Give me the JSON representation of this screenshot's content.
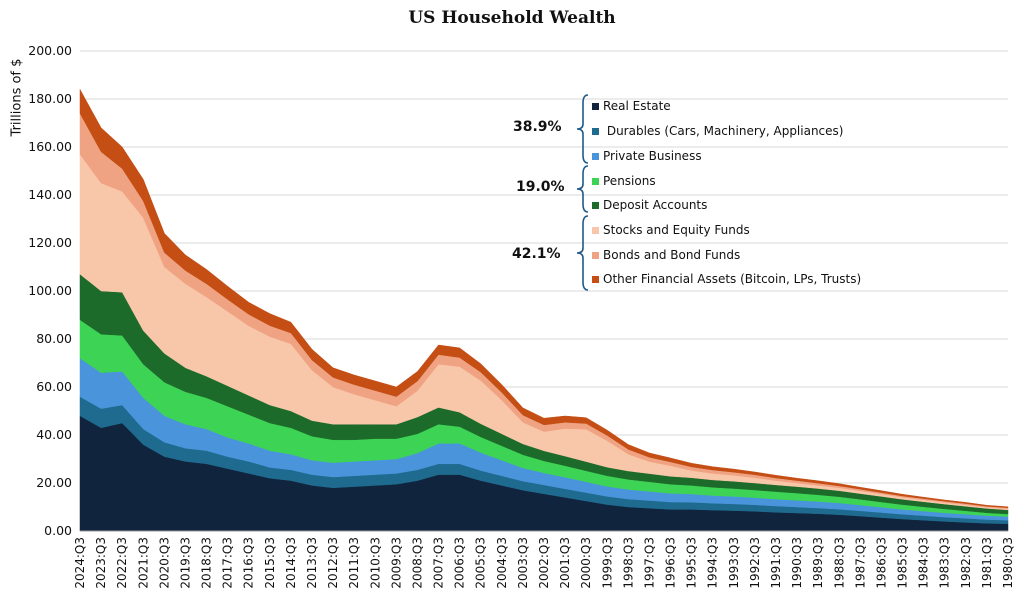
{
  "chart_data": {
    "type": "area",
    "title": "US Household Wealth",
    "xlabel": "",
    "ylabel": "Trillions of $",
    "ylim": [
      0,
      200
    ],
    "y_ticks": [
      "0.00",
      "20.00",
      "40.00",
      "60.00",
      "80.00",
      "100.00",
      "120.00",
      "140.00",
      "160.00",
      "180.00",
      "200.00"
    ],
    "x_tick_labels": [
      "2024:Q3",
      "2023:Q3",
      "2022:Q3",
      "2021:Q3",
      "2020:Q3",
      "2019:Q3",
      "2018:Q3",
      "2017:Q3",
      "2016:Q3",
      "2015:Q3",
      "2014:Q3",
      "2013:Q3",
      "2012:Q3",
      "2011:Q3",
      "2010:Q3",
      "2009:Q3",
      "2008:Q3",
      "2007:Q3",
      "2006:Q3",
      "2005:Q3",
      "2004:Q3",
      "2003:Q3",
      "2002:Q3",
      "2001:Q3",
      "2000:Q3",
      "1999:Q3",
      "1998:Q3",
      "1997:Q3",
      "1996:Q3",
      "1995:Q3",
      "1994:Q3",
      "1993:Q3",
      "1992:Q3",
      "1991:Q3",
      "1990:Q3",
      "1989:Q3",
      "1988:Q3",
      "1987:Q3",
      "1986:Q3",
      "1985:Q3",
      "1984:Q3",
      "1983:Q3",
      "1982:Q3",
      "1981:Q3",
      "1980:Q3"
    ],
    "x": [
      "2024:Q3",
      "2023:Q3",
      "2022:Q3",
      "2021:Q3",
      "2020:Q3",
      "2019:Q3",
      "2018:Q3",
      "2017:Q3",
      "2016:Q3",
      "2015:Q3",
      "2014:Q3",
      "2013:Q3",
      "2012:Q3",
      "2011:Q3",
      "2010:Q3",
      "2009:Q3",
      "2008:Q3",
      "2007:Q3",
      "2006:Q3",
      "2005:Q3",
      "2004:Q3",
      "2003:Q3",
      "2002:Q3",
      "2001:Q3",
      "2000:Q3",
      "1999:Q3",
      "1998:Q3",
      "1997:Q3",
      "1996:Q3",
      "1995:Q3",
      "1994:Q3",
      "1993:Q3",
      "1992:Q3",
      "1991:Q3",
      "1990:Q3",
      "1989:Q3",
      "1988:Q3",
      "1987:Q3",
      "1986:Q3",
      "1985:Q3",
      "1984:Q3",
      "1983:Q3",
      "1982:Q3",
      "1981:Q3",
      "1980:Q3"
    ],
    "stacked": true,
    "series": [
      {
        "name": "Real Estate",
        "color": "#10243e",
        "values": [
          48,
          43,
          45,
          36,
          31,
          29,
          28,
          26,
          24,
          22,
          21,
          19,
          18,
          18.5,
          19,
          19.5,
          21,
          23.5,
          23.5,
          21,
          19,
          17,
          15.5,
          14,
          12.5,
          11,
          10,
          9.5,
          9,
          9,
          8.7,
          8.5,
          8.2,
          7.8,
          7.5,
          7.2,
          6.8,
          6.2,
          5.6,
          5,
          4.5,
          4,
          3.6,
          3.2,
          3
        ]
      },
      {
        "name": "Durables (Cars, Machinery, Appliances)",
        "color": "#1e6b8f",
        "values": [
          8,
          8,
          7.5,
          6.5,
          6,
          5.5,
          5.5,
          5,
          5,
          4.5,
          4.5,
          4.5,
          4.5,
          4.5,
          4.5,
          4.5,
          4.5,
          4.5,
          4.5,
          4.2,
          4,
          3.8,
          3.7,
          3.6,
          3.5,
          3.4,
          3.3,
          3.2,
          3.1,
          3,
          2.9,
          2.8,
          2.7,
          2.6,
          2.5,
          2.4,
          2.3,
          2.2,
          2.1,
          2,
          1.9,
          1.8,
          1.7,
          1.6,
          1.5
        ]
      },
      {
        "name": "Private Business",
        "color": "#4a94dc",
        "values": [
          16,
          15,
          14,
          13,
          11,
          10,
          9,
          8,
          7.5,
          7,
          6.5,
          6,
          6,
          6,
          6,
          6,
          7,
          8.5,
          8.5,
          7.5,
          6.5,
          5.5,
          5,
          4.8,
          4.5,
          4.2,
          4,
          3.8,
          3.6,
          3.4,
          3.2,
          3.1,
          3,
          2.9,
          2.8,
          2.7,
          2.6,
          2.4,
          2.2,
          2,
          1.9,
          1.8,
          1.7,
          1.6,
          1.5
        ]
      },
      {
        "name": "Pensions",
        "color": "#3dd455",
        "values": [
          16,
          16,
          15,
          14,
          14,
          13.5,
          13,
          13,
          12,
          11.5,
          11,
          10,
          9.5,
          9,
          9,
          8.5,
          8,
          8,
          7,
          6.5,
          6,
          5.5,
          5,
          4.8,
          4.6,
          4.4,
          4.2,
          4,
          3.8,
          3.6,
          3.4,
          3.3,
          3.2,
          3.1,
          3,
          2.8,
          2.6,
          2.4,
          2.2,
          2,
          1.8,
          1.6,
          1.4,
          1.2,
          1.1
        ]
      },
      {
        "name": "Deposit Accounts",
        "color": "#1d6b2a",
        "values": [
          19,
          18,
          18,
          14,
          12,
          10,
          9,
          8.5,
          8,
          7.5,
          7,
          6.5,
          6.5,
          6.5,
          6,
          6,
          7,
          7,
          6,
          5.5,
          5,
          4.5,
          4.2,
          4,
          3.8,
          3.6,
          3.5,
          3.4,
          3.3,
          3.2,
          3.1,
          3,
          2.9,
          2.8,
          2.7,
          2.6,
          2.5,
          2.4,
          2.3,
          2.2,
          2.1,
          2,
          1.9,
          1.8,
          1.7
        ]
      },
      {
        "name": "Stocks and Equity Funds",
        "color": "#f8c6a8",
        "values": [
          50,
          45,
          42,
          47,
          36,
          35,
          33,
          31,
          29,
          28.5,
          28,
          21,
          15.5,
          12.5,
          10,
          7.5,
          11,
          18,
          19,
          18,
          14,
          9,
          8,
          11.5,
          13.5,
          11,
          7,
          5,
          4.4,
          3,
          2.7,
          2.5,
          2.2,
          1.8,
          1.5,
          1.3,
          1.2,
          1.1,
          1,
          0.9,
          0.8,
          0.7,
          0.6,
          0.5,
          0.5
        ]
      },
      {
        "name": "Bonds and Bond Funds",
        "color": "#f0a383",
        "values": [
          17,
          13,
          9.5,
          7,
          6,
          5.5,
          5.5,
          5,
          4.8,
          4.6,
          4.5,
          4.2,
          4,
          4,
          4,
          4,
          4,
          4,
          3.8,
          3.5,
          3.2,
          3,
          2.8,
          2.6,
          2.4,
          2.2,
          2,
          1.8,
          1.6,
          1.5,
          1.4,
          1.3,
          1.2,
          1.1,
          1,
          0.9,
          0.8,
          0.7,
          0.6,
          0.5,
          0.5,
          0.5,
          0.5,
          0.4,
          0.4
        ]
      },
      {
        "name": "Other Financial Assets (Bitcoin, LPs, Trusts)",
        "color": "#c44e14",
        "values": [
          10,
          10,
          9,
          9,
          8,
          6.5,
          6,
          5.5,
          5,
          5,
          4.5,
          4.5,
          4,
          4,
          4,
          4,
          4,
          4,
          4,
          3.5,
          3.3,
          3,
          2.8,
          2.6,
          2.4,
          2.2,
          2,
          1.8,
          1.6,
          1.5,
          1.4,
          1.3,
          1.2,
          1.1,
          1,
          1,
          0.9,
          0.8,
          0.8,
          0.7,
          0.6,
          0.5,
          0.5,
          0.4,
          0.4
        ]
      }
    ],
    "legend": "right-inside",
    "grid": true,
    "group_annotations": [
      {
        "label": "38.9%",
        "series": [
          "Real Estate",
          "Durables (Cars, Machinery, Appliances)",
          "Private Business"
        ]
      },
      {
        "label": "19.0%",
        "series": [
          "Pensions",
          "Deposit Accounts"
        ]
      },
      {
        "label": "42.1%",
        "series": [
          "Stocks and Equity Funds",
          "Bonds and Bond Funds",
          "Other Financial Assets (Bitcoin, LPs, Trusts)"
        ]
      }
    ]
  }
}
